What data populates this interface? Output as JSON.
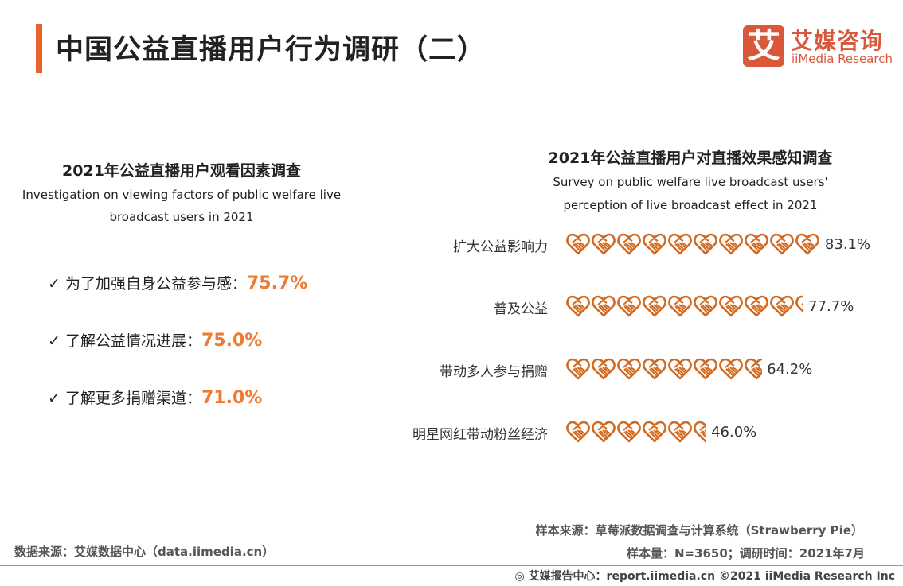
{
  "header": {
    "title": "中国公益直播用户行为调研（二）",
    "logo_mark": "艾",
    "logo_cn": "艾媒咨询",
    "logo_en": "iiMedia Research"
  },
  "left": {
    "title": "2021年公益直播用户观看因素调查",
    "subtitle_line1": "Investigation on viewing factors of public welfare live",
    "subtitle_line2": "broadcast users in 2021",
    "check_icon": "check-icon",
    "items": [
      {
        "label": "为了加强自身公益参与感：",
        "value": "75.7%"
      },
      {
        "label": "了解公益情况进展：",
        "value": "75.0%"
      },
      {
        "label": "了解更多捐赠渠道：",
        "value": "71.0%"
      }
    ],
    "value_color": "#ee7b33"
  },
  "chart_data": {
    "type": "bar",
    "orientation": "horizontal pictogram",
    "icon": "heart-hands-icon",
    "color": "#d2691e",
    "title": "2021年公益直播用户对直播效果感知调查",
    "subtitle_line1": "Survey on public welfare live broadcast users'",
    "subtitle_line2": "perception of live broadcast effect in 2021",
    "categories": [
      "扩大公益影响力",
      "普及公益",
      "带动多人参与捐赠",
      "明星网红带动粉丝经济"
    ],
    "values": [
      83.1,
      77.7,
      64.2,
      46.0
    ],
    "labels": [
      "83.1%",
      "77.7%",
      "64.2%",
      "46.0%"
    ]
  },
  "footer": {
    "sample_source": "样本来源：草莓派数据调查与计算系统（Strawberry  Pie）",
    "sample_size": "样本量：N=3650；调研时间：2021年7月",
    "data_source": "数据来源：艾媒数据中心（data.iimedia.cn）",
    "report": "艾媒报告中心：report.iimedia.cn   ©2021  iiMedia Research  Inc"
  }
}
